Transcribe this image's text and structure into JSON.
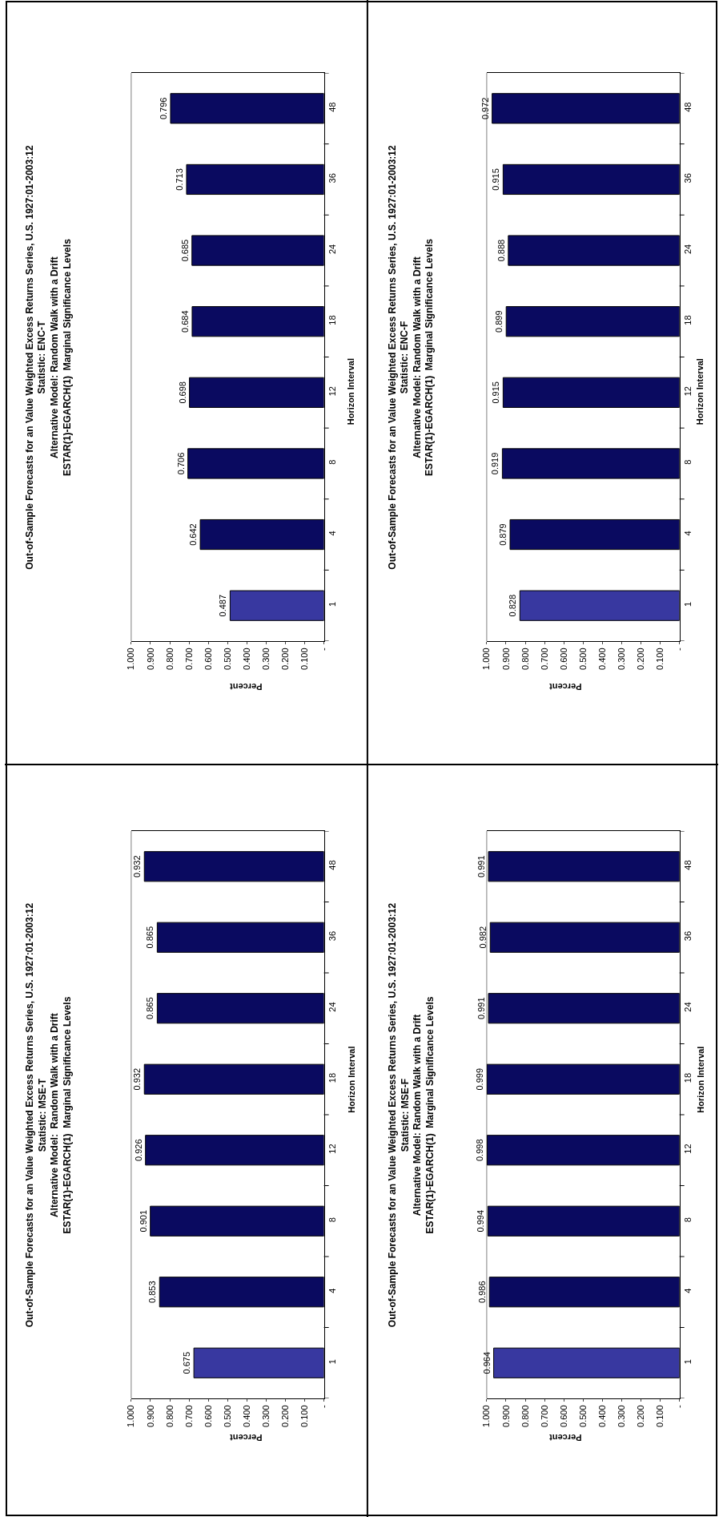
{
  "chart_data": [
    {
      "type": "bar",
      "orientation": "horizontal",
      "title": "Out-of-Sample Forecasts for an Value Weighted Excess Returns Series, U.S. 1927:01-2003:12\nStatistic: MSE-T\nAlternative Model:  Random Walk with a Drift\nESTAR(1)-EGARCH(1)  Marginal Significance Levels",
      "xlabel": "Percent",
      "ylabel": "Horizon Interval",
      "categories": [
        "48",
        "36",
        "24",
        "18",
        "12",
        "8",
        "4",
        "1"
      ],
      "values": [
        0.932,
        0.865,
        0.865,
        0.932,
        0.926,
        0.901,
        0.853,
        0.675
      ],
      "colors": [
        "#0a0a60",
        "#0a0a60",
        "#0a0a60",
        "#0a0a60",
        "#0a0a60",
        "#0a0a60",
        "#0a0a60",
        "#3838a0"
      ],
      "xlim": [
        1,
        0
      ],
      "xticks": [
        {
          "value": 1,
          "label": "1.000"
        },
        {
          "value": 0.9,
          "label": "0.900"
        },
        {
          "value": 0.8,
          "label": "0.800"
        },
        {
          "value": 0.7,
          "label": "0.700"
        },
        {
          "value": 0.6,
          "label": "0.600"
        },
        {
          "value": 0.5,
          "label": "0.500"
        },
        {
          "value": 0.4,
          "label": "0.400"
        },
        {
          "value": 0.3,
          "label": "0.300"
        },
        {
          "value": 0.2,
          "label": "0.200"
        },
        {
          "value": 0.1,
          "label": "0.100"
        },
        {
          "value": 0,
          "label": "-"
        }
      ],
      "data_labels": true
    },
    {
      "type": "bar",
      "orientation": "horizontal",
      "title": "Out-of-Sample Forecasts for an Value Weighted Excess Returns Series, U.S. 1927:01-2003:12\nStatistic: ENC-T\nAlternative Model: Random Walk with a Drift\nESTAR(1)-EGARCH(1)  Marginal Significance Levels",
      "xlabel": "Percent",
      "ylabel": "Horizon Interval",
      "categories": [
        "48",
        "36",
        "24",
        "18",
        "12",
        "8",
        "4",
        "1"
      ],
      "values": [
        0.796,
        0.713,
        0.685,
        0.684,
        0.698,
        0.706,
        0.642,
        0.487
      ],
      "colors": [
        "#0a0a60",
        "#0a0a60",
        "#0a0a60",
        "#0a0a60",
        "#0a0a60",
        "#0a0a60",
        "#0a0a60",
        "#3838a0"
      ],
      "xlim": [
        1,
        0
      ],
      "xticks": [
        {
          "value": 1,
          "label": "1.000"
        },
        {
          "value": 0.9,
          "label": "0.900"
        },
        {
          "value": 0.8,
          "label": "0.800"
        },
        {
          "value": 0.7,
          "label": "0.700"
        },
        {
          "value": 0.6,
          "label": "0.600"
        },
        {
          "value": 0.5,
          "label": "0.500"
        },
        {
          "value": 0.4,
          "label": "0.400"
        },
        {
          "value": 0.3,
          "label": "0.300"
        },
        {
          "value": 0.2,
          "label": "0.200"
        },
        {
          "value": 0.1,
          "label": "0.100"
        },
        {
          "value": 0,
          "label": "-"
        }
      ],
      "data_labels": true
    },
    {
      "type": "bar",
      "orientation": "horizontal",
      "title": "Out-of-Sample Forecasts for an Value Weighted Excess Returns Series, U.S. 1927:01-2003:12\nStatistic: MSE-F\nAlternative Model: Random Walk with a Drift\nESTAR(1)-EGARCH(1)  Marginal Significance Levels",
      "xlabel": "Percent",
      "ylabel": "Horizon Interval",
      "categories": [
        "48",
        "36",
        "24",
        "18",
        "12",
        "8",
        "4",
        "1"
      ],
      "values": [
        0.991,
        0.982,
        0.991,
        0.999,
        0.998,
        0.994,
        0.986,
        0.964
      ],
      "colors": [
        "#0a0a60",
        "#0a0a60",
        "#0a0a60",
        "#0a0a60",
        "#0a0a60",
        "#0a0a60",
        "#0a0a60",
        "#3838a0"
      ],
      "xlim": [
        1,
        0
      ],
      "xticks": [
        {
          "value": 1,
          "label": "1.000"
        },
        {
          "value": 0.9,
          "label": "0.900"
        },
        {
          "value": 0.8,
          "label": "0.800"
        },
        {
          "value": 0.7,
          "label": "0.700"
        },
        {
          "value": 0.6,
          "label": "0.600"
        },
        {
          "value": 0.5,
          "label": "0.500"
        },
        {
          "value": 0.4,
          "label": "0.400"
        },
        {
          "value": 0.3,
          "label": "0.300"
        },
        {
          "value": 0.2,
          "label": "0.200"
        },
        {
          "value": 0.1,
          "label": "0.100"
        },
        {
          "value": 0,
          "label": "-"
        }
      ],
      "data_labels": true
    },
    {
      "type": "bar",
      "orientation": "horizontal",
      "title": "Out-of-Sample Forecasts for an Value Weighted Excess Returns Series, U.S. 1927:01-2003:12\nStatistic: ENC-F\nAlternative Model: Random Walk with a Drift\nESTAR(1)-EGARCH(1)  Marginal Significance Levels",
      "xlabel": "Percent",
      "ylabel": "Horizon Interval",
      "categories": [
        "48",
        "36",
        "24",
        "18",
        "12",
        "8",
        "4",
        "1"
      ],
      "values": [
        0.972,
        0.915,
        0.888,
        0.899,
        0.915,
        0.919,
        0.879,
        0.828
      ],
      "colors": [
        "#0a0a60",
        "#0a0a60",
        "#0a0a60",
        "#0a0a60",
        "#0a0a60",
        "#0a0a60",
        "#0a0a60",
        "#3838a0"
      ],
      "xlim": [
        1,
        0
      ],
      "xticks": [
        {
          "value": 1,
          "label": "1.000"
        },
        {
          "value": 0.9,
          "label": "0.900"
        },
        {
          "value": 0.8,
          "label": "0.800"
        },
        {
          "value": 0.7,
          "label": "0.700"
        },
        {
          "value": 0.6,
          "label": "0.600"
        },
        {
          "value": 0.5,
          "label": "0.500"
        },
        {
          "value": 0.4,
          "label": "0.400"
        },
        {
          "value": 0.3,
          "label": "0.300"
        },
        {
          "value": 0.2,
          "label": "0.200"
        },
        {
          "value": 0.1,
          "label": "0.100"
        },
        {
          "value": 0,
          "label": "-"
        }
      ],
      "data_labels": true
    }
  ]
}
